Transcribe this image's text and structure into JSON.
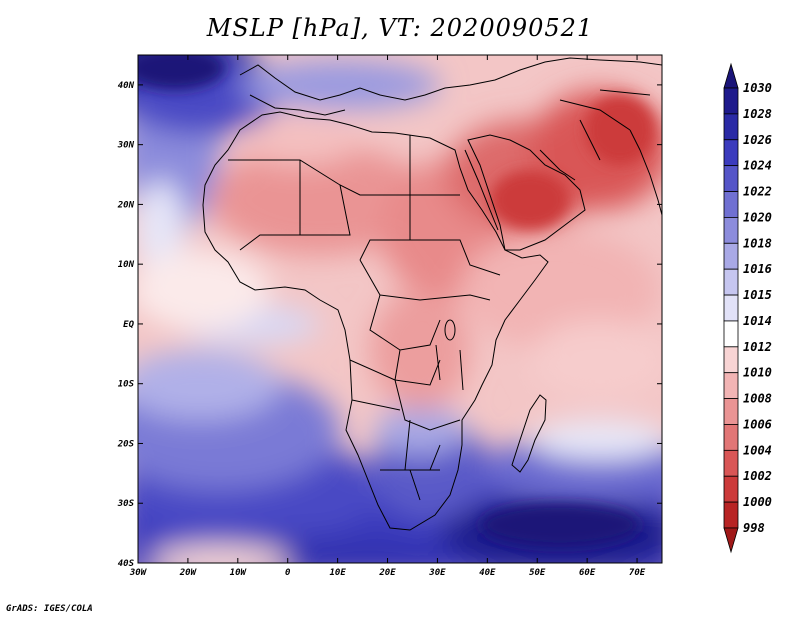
{
  "title": "MSLP [hPa], VT: 2020090521",
  "footer": "GrADS: IGES/COLA",
  "map": {
    "lon_ticks": [
      "30W",
      "20W",
      "10W",
      "0",
      "10E",
      "20E",
      "30E",
      "40E",
      "50E",
      "60E",
      "70E"
    ],
    "lat_ticks": [
      "40N",
      "30N",
      "20N",
      "10N",
      "EQ",
      "10S",
      "20S",
      "30S",
      "40S"
    ],
    "lon_range": [
      -30,
      75
    ],
    "lat_range": [
      -40,
      45
    ]
  },
  "colorbar": {
    "labels": [
      "1030",
      "1028",
      "1026",
      "1024",
      "1022",
      "1020",
      "1018",
      "1016",
      "1015",
      "1014",
      "1012",
      "1010",
      "1008",
      "1006",
      "1004",
      "1002",
      "1000",
      "998"
    ],
    "colors": [
      "#1e1a8c",
      "#2a2aa6",
      "#3b3bbd",
      "#5555c8",
      "#7070d2",
      "#8c8cdc",
      "#a9a9e6",
      "#c6c6f0",
      "#e2e2f8",
      "#ffffff",
      "#f8d4d4",
      "#f2b4b4",
      "#ea9494",
      "#e27676",
      "#d95656",
      "#cc3a3a",
      "#b82424"
    ],
    "tip_top": "#1a1478",
    "tip_bottom": "#a01818"
  },
  "colors": {
    "ocean_pos": "#3b3bbd",
    "land_warm": "#e88d8d",
    "deep_low": "#cc3a3a",
    "border": "#000000"
  }
}
